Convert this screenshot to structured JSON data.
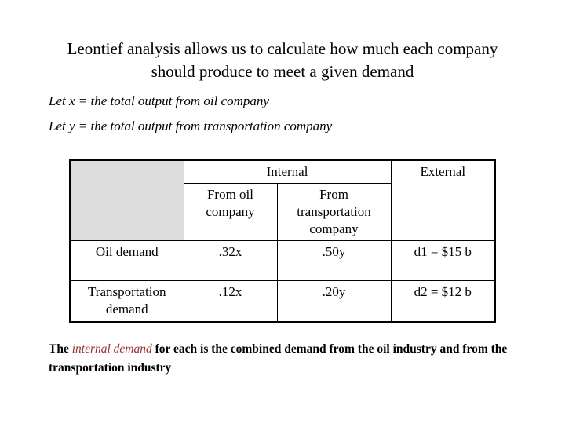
{
  "slide": {
    "title": "Leontief analysis allows us to calculate how much each company should produce to meet a given demand"
  },
  "definitions": {
    "line1": "Let x = the total output from oil company",
    "line2": "Let y = the total output from transportation company"
  },
  "table": {
    "header": {
      "internal": "Internal",
      "external": "External",
      "from_oil": "From oil company",
      "from_transportation": "From transportation company"
    },
    "rows": [
      {
        "label": "Oil demand",
        "oil": ".32x",
        "transport": ".50y",
        "external": "d1 = $15 b"
      },
      {
        "label": "Transportation demand",
        "oil": ".12x",
        "transport": ".20y",
        "external": "d2 = $12 b"
      }
    ]
  },
  "footer": {
    "prefix": "The ",
    "highlight": "internal demand",
    "suffix": " for each is the combined demand from the oil industry and from the transportation industry"
  },
  "colors": {
    "background": "#ffffff",
    "text": "#000000",
    "highlight_text": "#993333",
    "table_corner_fill": "#dcdcdc",
    "table_border": "#000000"
  }
}
